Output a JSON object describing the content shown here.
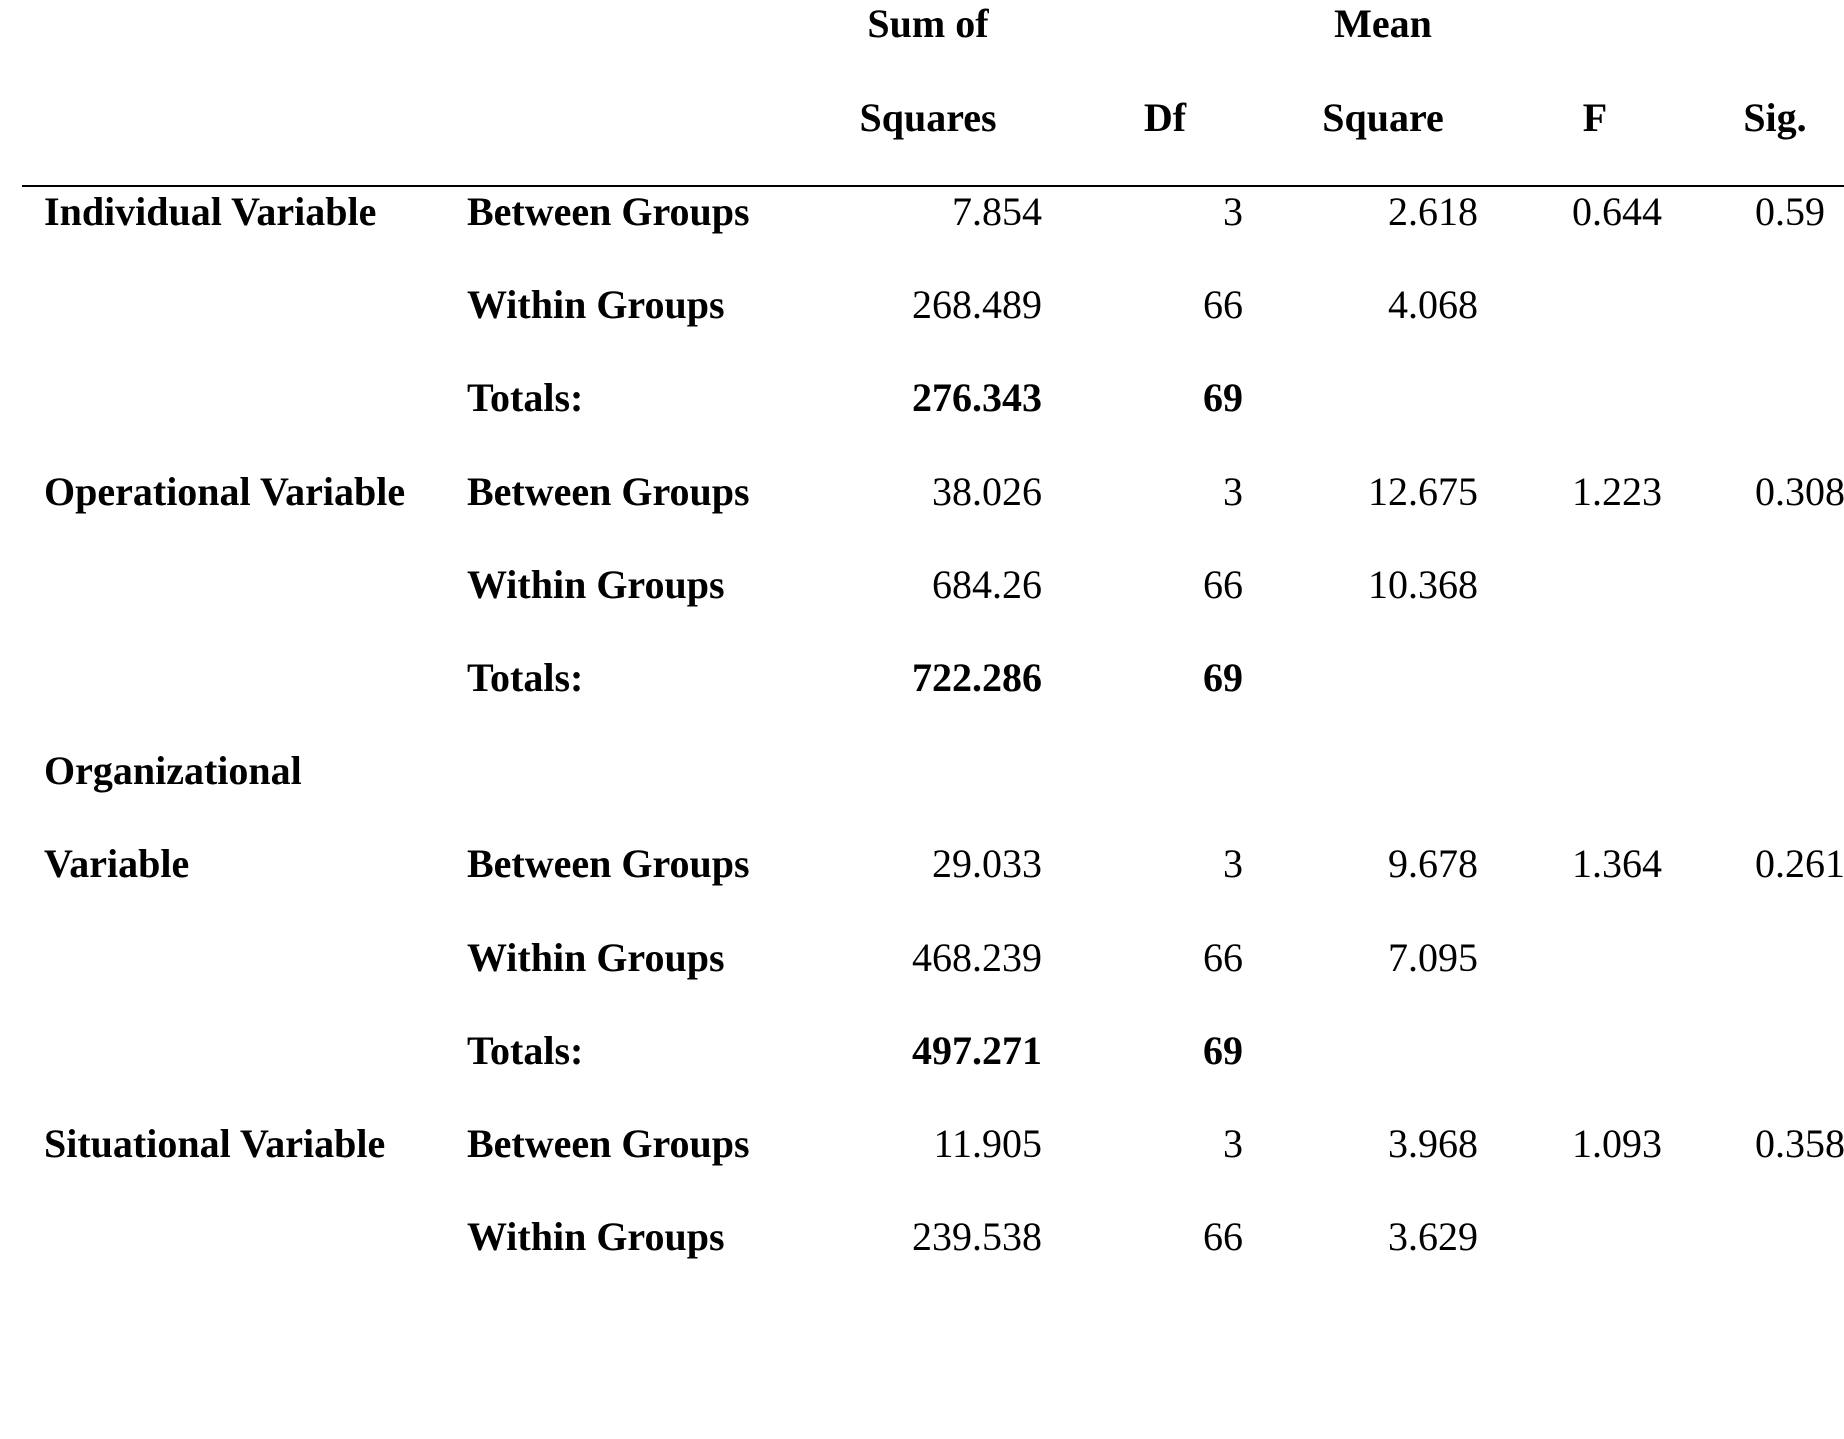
{
  "headers": {
    "sum_of_squares_line1": "Sum of",
    "sum_of_squares_line2": "Squares",
    "df": "Df",
    "mean_square_line1": "Mean",
    "mean_square_line2": "Square",
    "f": "F",
    "sig": "Sig."
  },
  "groups": [
    {
      "name": "Individual Variable",
      "rows": [
        {
          "source": "Between Groups",
          "ss": "7.854",
          "df": "3",
          "ms": "2.618",
          "f": "0.644",
          "sig": "0.59"
        },
        {
          "source": "Within Groups",
          "ss": "268.489",
          "df": "66",
          "ms": "4.068"
        },
        {
          "source": "Totals:",
          "ss": "276.343",
          "df": "69"
        }
      ]
    },
    {
      "name": "Operational Variable",
      "rows": [
        {
          "source": "Between Groups",
          "ss": "38.026",
          "df": "3",
          "ms": "12.675",
          "f": "1.223",
          "sig": "0.308"
        },
        {
          "source": "Within Groups",
          "ss": "684.26",
          "df": "66",
          "ms": "10.368"
        },
        {
          "source": "Totals:",
          "ss": "722.286",
          "df": "69"
        }
      ]
    },
    {
      "name_line1": "Organizational",
      "name_line2": "Variable",
      "rows": [
        {
          "source": "Between Groups",
          "ss": "29.033",
          "df": "3",
          "ms": "9.678",
          "f": "1.364",
          "sig": "0.261"
        },
        {
          "source": "Within Groups",
          "ss": "468.239",
          "df": "66",
          "ms": "7.095"
        },
        {
          "source": "Totals:",
          "ss": "497.271",
          "df": "69"
        }
      ]
    },
    {
      "name": "Situational Variable",
      "rows": [
        {
          "source": "Between Groups",
          "ss": "11.905",
          "df": "3",
          "ms": "3.968",
          "f": "1.093",
          "sig": "0.358"
        },
        {
          "source": "Within Groups",
          "ss": "239.538",
          "df": "66",
          "ms": "3.629"
        }
      ]
    }
  ]
}
